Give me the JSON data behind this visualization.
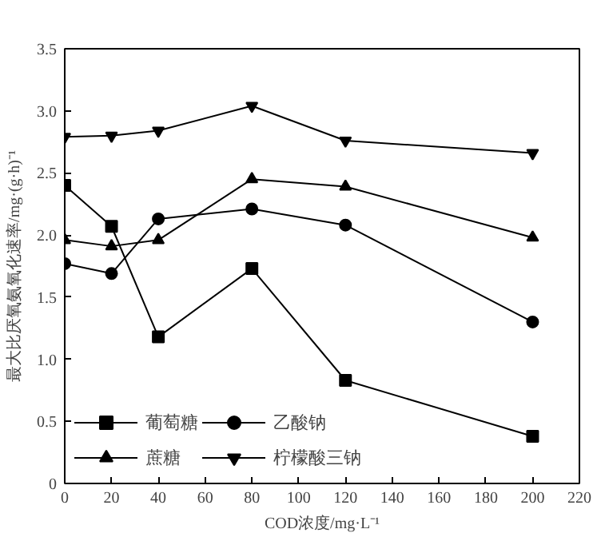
{
  "chart_data": {
    "type": "line",
    "xlabel": "COD浓度/mg·L⁻¹",
    "ylabel": "最大比厌氧氨氧化速率/mg·(g·h)⁻¹",
    "x": [
      0,
      20,
      40,
      80,
      120,
      200
    ],
    "series": [
      {
        "name": "葡萄糖",
        "color": "#000000",
        "marker": "square",
        "values": [
          2.4,
          2.07,
          1.18,
          1.73,
          0.83,
          0.38
        ]
      },
      {
        "name": "乙酸钠",
        "color": "#000000",
        "marker": "circle",
        "values": [
          1.77,
          1.69,
          2.13,
          2.21,
          2.08,
          1.3
        ]
      },
      {
        "name": "蔗糖",
        "color": "#000000",
        "marker": "triangle",
        "values": [
          1.96,
          1.91,
          1.96,
          2.45,
          2.39,
          1.98
        ]
      },
      {
        "name": "柠檬酸三钠",
        "color": "#000000",
        "marker": "triangle",
        "values": [
          2.79,
          2.8,
          2.84,
          3.04,
          2.76,
          2.66
        ]
      }
    ],
    "xlim": [
      0,
      220
    ],
    "xticks": [
      0,
      20,
      40,
      60,
      80,
      100,
      120,
      140,
      160,
      180,
      200,
      220
    ],
    "ylim": [
      0,
      3.5
    ],
    "yticks": [
      0,
      0.5,
      {
        "value": 1,
        "label": "1.0"
      },
      1.5,
      {
        "value": 2,
        "label": "2.0"
      },
      2.5,
      {
        "value": 3,
        "label": "3.0"
      },
      3.5
    ],
    "grid": false,
    "legend": "bottom left",
    "line_style": "solid"
  }
}
